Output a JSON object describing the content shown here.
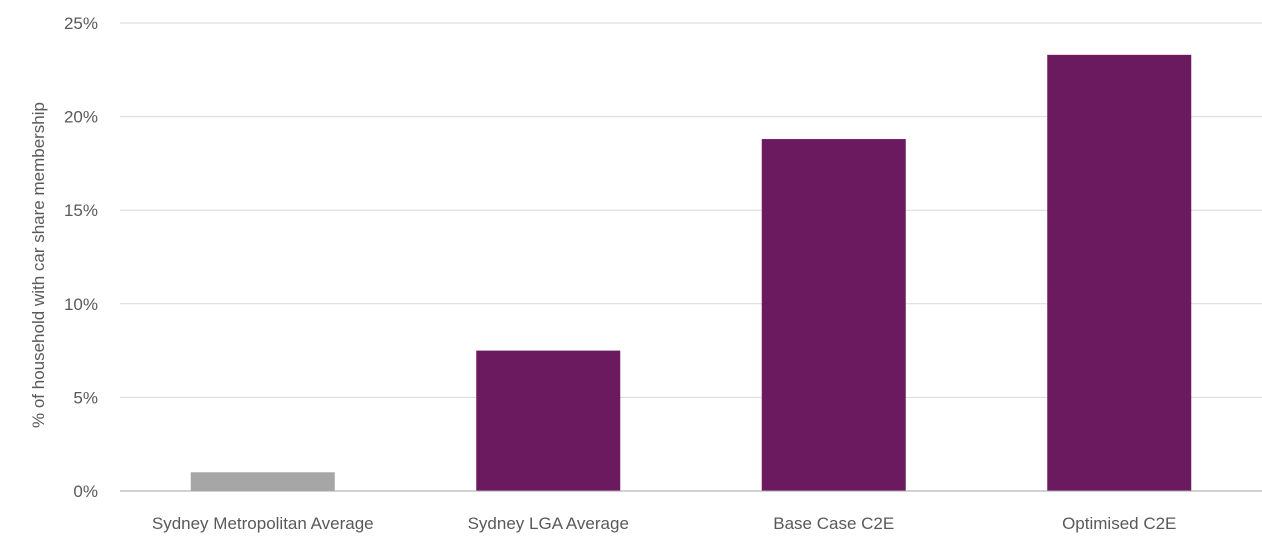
{
  "chart_data": {
    "type": "bar",
    "title": "",
    "xlabel": "",
    "ylabel": "% of household with car share membership",
    "ylim": [
      0,
      25
    ],
    "yticks": [
      0,
      5,
      10,
      15,
      20,
      25
    ],
    "ytick_labels": [
      "0%",
      "5%",
      "10%",
      "15%",
      "20%",
      "25%"
    ],
    "categories": [
      "Sydney Metropolitan Average",
      "Sydney LGA Average",
      "Base Case C2E",
      "Optimised C2E"
    ],
    "values": [
      1.0,
      7.5,
      18.8,
      23.3
    ],
    "bar_colors": [
      "#a6a6a6",
      "#6b1a5f",
      "#6b1a5f",
      "#6b1a5f"
    ],
    "grid": true,
    "legend": "none"
  }
}
